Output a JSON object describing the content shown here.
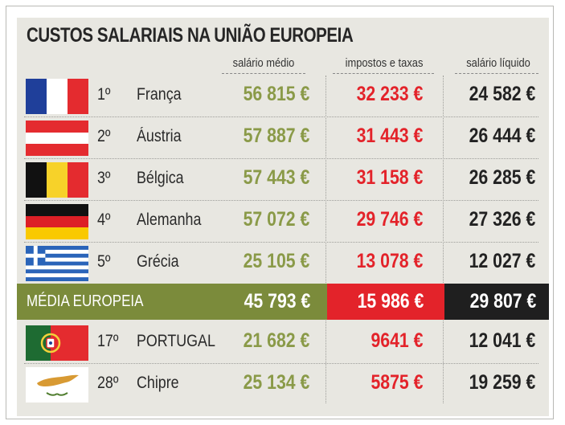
{
  "chart_data": {
    "type": "table",
    "title": "CUSTOS SALARIAIS NA UNIÃO EUROPEIA",
    "columns": [
      "salário médio",
      "impostos e taxas",
      "salário líquido"
    ],
    "rows": [
      {
        "rank": "1º",
        "country": "França",
        "flag": "france-flag",
        "salary": "56 815 €",
        "tax": "32 233 €",
        "net": "24 582 €"
      },
      {
        "rank": "2º",
        "country": "Áustria",
        "flag": "austria-flag",
        "salary": "57 887 €",
        "tax": "31 443 €",
        "net": "26 444 €"
      },
      {
        "rank": "3º",
        "country": "Bélgica",
        "flag": "belgium-flag",
        "salary": "57 443 €",
        "tax": "31 158 €",
        "net": "26 285 €"
      },
      {
        "rank": "4º",
        "country": "Alemanha",
        "flag": "germany-flag",
        "salary": "57 072 €",
        "tax": "29 746 €",
        "net": "27 326 €"
      },
      {
        "rank": "5º",
        "country": "Grécia",
        "flag": "greece-flag",
        "salary": "25 105 €",
        "tax": "13 078 €",
        "net": "12 027 €"
      }
    ],
    "average": {
      "label": "MÉDIA EUROPEIA",
      "salary": "45 793 €",
      "tax": "15 986 €",
      "net": "29 807 €"
    },
    "extra_rows": [
      {
        "rank": "17º",
        "country": "PORTUGAL",
        "flag": "portugal-flag",
        "salary": "21 682 €",
        "tax": "9641 €",
        "net": "12 041 €"
      },
      {
        "rank": "28º",
        "country": "Chipre",
        "flag": "cyprus-flag",
        "salary": "25 134 €",
        "tax": "5875 €",
        "net": "19 259 €"
      }
    ],
    "colors": {
      "salary": "#8a9a48",
      "tax": "#e3232a",
      "net": "#222222",
      "average_band": "#7b8b3b"
    }
  }
}
